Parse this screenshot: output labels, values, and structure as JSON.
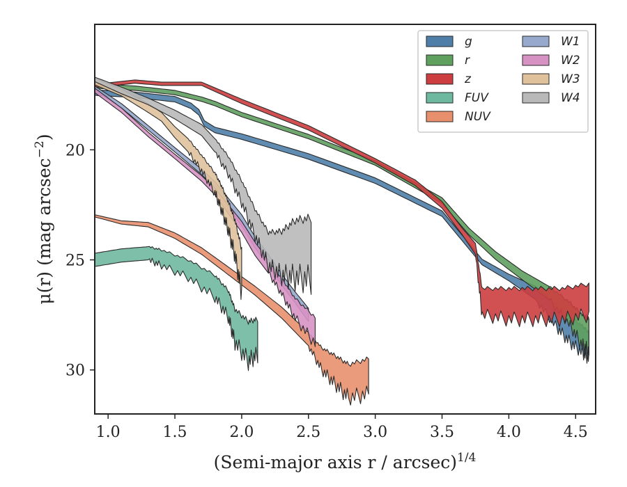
{
  "chart_data": {
    "type": "area",
    "xlabel": "(Semi-major axis r / arcsec)",
    "xlabel_exponent": "1/4",
    "ylabel": "μ(r) (mag arcsec",
    "ylabel_exponent": "−2",
    "ylabel_tail": ")",
    "xlim": [
      0.9,
      4.65
    ],
    "ylim": [
      32,
      14.3
    ],
    "y_inverted": true,
    "x_ticks": [
      "1.0",
      "1.5",
      "2.0",
      "2.5",
      "3.0",
      "3.5",
      "4.0",
      "4.5"
    ],
    "y_ticks": [
      "20",
      "25",
      "30"
    ],
    "x_tick_values": [
      1.0,
      1.5,
      2.0,
      2.5,
      3.0,
      3.5,
      4.0,
      4.5
    ],
    "y_tick_values": [
      20,
      25,
      30
    ],
    "grid": false,
    "legend": {
      "placement": "top-right",
      "columns": 2
    },
    "series": [
      {
        "name": "g",
        "color": "#4f7fa8",
        "x": [
          0.9,
          1.2,
          1.5,
          1.62,
          1.68,
          1.72,
          1.8,
          2.0,
          2.5,
          3.0,
          3.5,
          3.8,
          4.0,
          4.2,
          4.35,
          4.45,
          4.55,
          4.6
        ],
        "y": [
          17.4,
          17.5,
          17.7,
          18.0,
          18.3,
          18.8,
          19.1,
          19.4,
          20.3,
          21.4,
          22.9,
          25.1,
          25.8,
          26.5,
          27.5,
          28.1,
          28.6,
          28.9
        ],
        "w": [
          0.25,
          0.25,
          0.25,
          0.25,
          0.25,
          0.25,
          0.25,
          0.25,
          0.25,
          0.25,
          0.25,
          0.25,
          0.3,
          0.6,
          1.0,
          1.2,
          1.2,
          1.2
        ]
      },
      {
        "name": "r",
        "color": "#5fa05f",
        "x": [
          0.9,
          1.2,
          1.5,
          1.7,
          1.8,
          2.0,
          2.5,
          3.0,
          3.5,
          3.7,
          3.9,
          4.1,
          4.3,
          4.45,
          4.55,
          4.6
        ],
        "y": [
          17.1,
          17.2,
          17.4,
          17.7,
          17.9,
          18.4,
          19.4,
          20.6,
          22.3,
          23.7,
          24.8,
          25.7,
          26.5,
          27.4,
          28.2,
          28.4
        ],
        "w": [
          0.2,
          0.2,
          0.2,
          0.2,
          0.2,
          0.2,
          0.2,
          0.2,
          0.25,
          0.3,
          0.35,
          0.4,
          0.6,
          1.0,
          1.4,
          1.5
        ]
      },
      {
        "name": "z",
        "color": "#cc3e40",
        "x": [
          0.9,
          1.2,
          1.4,
          1.7,
          2.0,
          2.5,
          3.0,
          3.3,
          3.5,
          3.65,
          3.75,
          3.8,
          4.0,
          4.2,
          4.4,
          4.6
        ],
        "y": [
          17.1,
          16.9,
          17.0,
          17.0,
          17.8,
          19.0,
          20.5,
          21.5,
          22.5,
          23.7,
          24.5,
          26.9,
          27.0,
          27.0,
          27.0,
          26.8
        ],
        "w": [
          0.15,
          0.15,
          0.15,
          0.15,
          0.2,
          0.2,
          0.2,
          0.25,
          0.3,
          0.3,
          0.5,
          1.2,
          1.4,
          1.4,
          1.4,
          1.4
        ]
      },
      {
        "name": "FUV",
        "color": "#6fb8a0",
        "x": [
          0.9,
          1.1,
          1.3,
          1.4,
          1.6,
          1.8,
          1.9,
          1.95,
          2.05,
          2.12
        ],
        "y": [
          25.0,
          24.8,
          24.7,
          24.9,
          25.4,
          26.2,
          27.0,
          28.0,
          28.7,
          28.5
        ],
        "w": [
          0.6,
          0.6,
          0.6,
          0.7,
          0.8,
          1.0,
          1.2,
          1.5,
          1.8,
          1.6
        ]
      },
      {
        "name": "NUV",
        "color": "#e8906e",
        "x": [
          0.9,
          1.1,
          1.3,
          1.5,
          1.7,
          1.9,
          2.1,
          2.3,
          2.5,
          2.6,
          2.7,
          2.8,
          2.95
        ],
        "y": [
          23.0,
          23.3,
          23.4,
          23.9,
          24.6,
          25.5,
          26.4,
          27.4,
          28.6,
          29.5,
          30.0,
          30.5,
          30.3
        ],
        "w": [
          0.1,
          0.15,
          0.2,
          0.25,
          0.3,
          0.35,
          0.4,
          0.5,
          0.6,
          1.0,
          1.3,
          1.5,
          1.6
        ]
      },
      {
        "name": "W1",
        "color": "#97a9cc",
        "x": [
          0.9,
          1.1,
          1.3,
          1.5,
          1.7,
          1.8,
          1.9,
          2.0,
          2.1,
          2.2,
          2.3,
          2.4,
          2.5
        ],
        "y": [
          17.2,
          18.0,
          19.0,
          20.0,
          21.0,
          21.6,
          22.4,
          23.2,
          24.2,
          25.0,
          25.9,
          26.7,
          27.5
        ],
        "w": [
          0.2,
          0.2,
          0.2,
          0.2,
          0.25,
          0.3,
          0.4,
          0.5,
          0.5,
          0.5,
          0.5,
          0.5,
          0.6
        ]
      },
      {
        "name": "W2",
        "color": "#d792c4",
        "x": [
          0.9,
          1.1,
          1.3,
          1.5,
          1.7,
          1.8,
          1.9,
          2.0,
          2.1,
          2.2,
          2.3,
          2.4,
          2.55
        ],
        "y": [
          17.3,
          18.2,
          19.3,
          20.3,
          21.3,
          21.9,
          22.7,
          23.5,
          24.5,
          25.3,
          26.2,
          27.2,
          28.2
        ],
        "w": [
          0.2,
          0.2,
          0.2,
          0.2,
          0.25,
          0.3,
          0.4,
          0.5,
          0.6,
          0.6,
          0.7,
          0.9,
          1.2
        ]
      },
      {
        "name": "W3",
        "color": "#dfc29c",
        "x": [
          0.9,
          1.1,
          1.3,
          1.4,
          1.5,
          1.6,
          1.7,
          1.8,
          1.85,
          1.9,
          1.95,
          2.0
        ],
        "y": [
          16.9,
          17.4,
          18.1,
          18.5,
          19.2,
          19.8,
          20.6,
          21.5,
          22.2,
          23.0,
          24.0,
          25.5
        ],
        "w": [
          0.3,
          0.3,
          0.4,
          0.4,
          0.5,
          0.6,
          0.7,
          0.9,
          1.1,
          1.3,
          1.6,
          2.0
        ]
      },
      {
        "name": "W4",
        "color": "#b9b9b9",
        "x": [
          0.9,
          1.1,
          1.3,
          1.5,
          1.7,
          1.8,
          1.9,
          2.0,
          2.1,
          2.2,
          2.3,
          2.4,
          2.52
        ],
        "y": [
          16.8,
          17.3,
          17.8,
          18.4,
          19.1,
          19.8,
          20.7,
          21.9,
          23.3,
          24.5,
          24.7,
          24.5,
          24.5
        ],
        "w": [
          0.2,
          0.3,
          0.3,
          0.4,
          0.5,
          0.6,
          0.8,
          1.0,
          1.2,
          1.5,
          2.0,
          2.6,
          2.8
        ]
      }
    ]
  }
}
